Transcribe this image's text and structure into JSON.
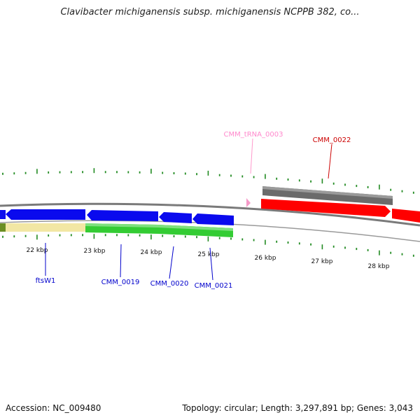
{
  "title": "Clavibacter michiganensis subsp. michiganensis NCPPB 382, co...",
  "footer": {
    "accession": "Accession: NC_009480",
    "summary": "Topology: circular; Length: 3,297,891 bp; Genes: 3,043"
  },
  "colors": {
    "forward_cds": "#ff0000",
    "reverse_cds": "#0000ee",
    "rna_feature": "#ff99cc",
    "gc_content": "#33cc33",
    "gc_content_low": "#f0e6a0",
    "backbone": "#808080",
    "tick": "#228b22"
  },
  "scale": {
    "unit": "kbp",
    "labels": [
      "22 kbp",
      "23 kbp",
      "24 kbp",
      "25 kbp",
      "26 kbp",
      "27 kbp",
      "28 kbp"
    ]
  },
  "features": [
    {
      "name": "ftsW1",
      "strand": "reverse",
      "type": "CDS",
      "label_color": "#0000cc"
    },
    {
      "name": "CMM_0019",
      "strand": "reverse",
      "type": "CDS",
      "label_color": "#0000cc"
    },
    {
      "name": "CMM_0020",
      "strand": "reverse",
      "type": "CDS",
      "label_color": "#0000cc"
    },
    {
      "name": "CMM_0021",
      "strand": "reverse",
      "type": "CDS",
      "label_color": "#0000cc"
    },
    {
      "name": "CMM_tRNA_0003",
      "strand": "forward",
      "type": "tRNA",
      "label_color": "#ff88cc"
    },
    {
      "name": "CMM_0022",
      "strand": "forward",
      "type": "CDS",
      "label_color": "#cc0000"
    }
  ]
}
